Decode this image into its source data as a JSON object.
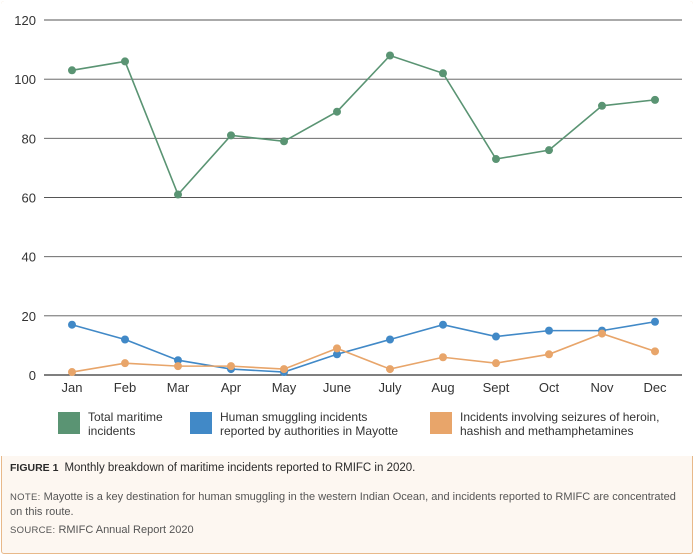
{
  "chart_data": {
    "type": "line",
    "categories": [
      "Jan",
      "Feb",
      "Mar",
      "Apr",
      "May",
      "June",
      "July",
      "Aug",
      "Sept",
      "Oct",
      "Nov",
      "Dec"
    ],
    "ylim": [
      0,
      120
    ],
    "yticks": [
      0,
      20,
      40,
      60,
      80,
      100,
      120
    ],
    "grid": true,
    "legend_position": "bottom",
    "series": [
      {
        "name": "Total maritime incidents",
        "name_lines": [
          "Total maritime",
          "incidents"
        ],
        "color": "#5a9473",
        "values": [
          103,
          106,
          61,
          81,
          79,
          89,
          108,
          102,
          73,
          76,
          91,
          93
        ]
      },
      {
        "name": "Human smuggling incidents reported by authorities in Mayotte",
        "name_lines": [
          "Human smuggling incidents",
          "reported by authorities in Mayotte"
        ],
        "color": "#4189c7",
        "values": [
          17,
          12,
          5,
          2,
          1,
          7,
          12,
          17,
          13,
          15,
          15,
          18
        ]
      },
      {
        "name": "Incidents involving seizures of heroin, hashish and methamphetamines",
        "name_lines": [
          "Incidents involving seizures of heroin,",
          "hashish and methamphetamines"
        ],
        "color": "#e8a56a",
        "values": [
          1,
          4,
          3,
          3,
          2,
          9,
          2,
          6,
          4,
          7,
          14,
          8
        ]
      }
    ]
  },
  "caption": {
    "label": "FIGURE 1",
    "title": "Monthly breakdown of maritime incidents reported to RMIFC in 2020."
  },
  "note": {
    "label": "NOTE:",
    "text": "Mayotte is a key destination for human smuggling in the western Indian Ocean, and incidents reported to RMIFC are concentrated on this route."
  },
  "source": {
    "label": "SOURCE:",
    "text": "RMIFC Annual Report 2020"
  }
}
